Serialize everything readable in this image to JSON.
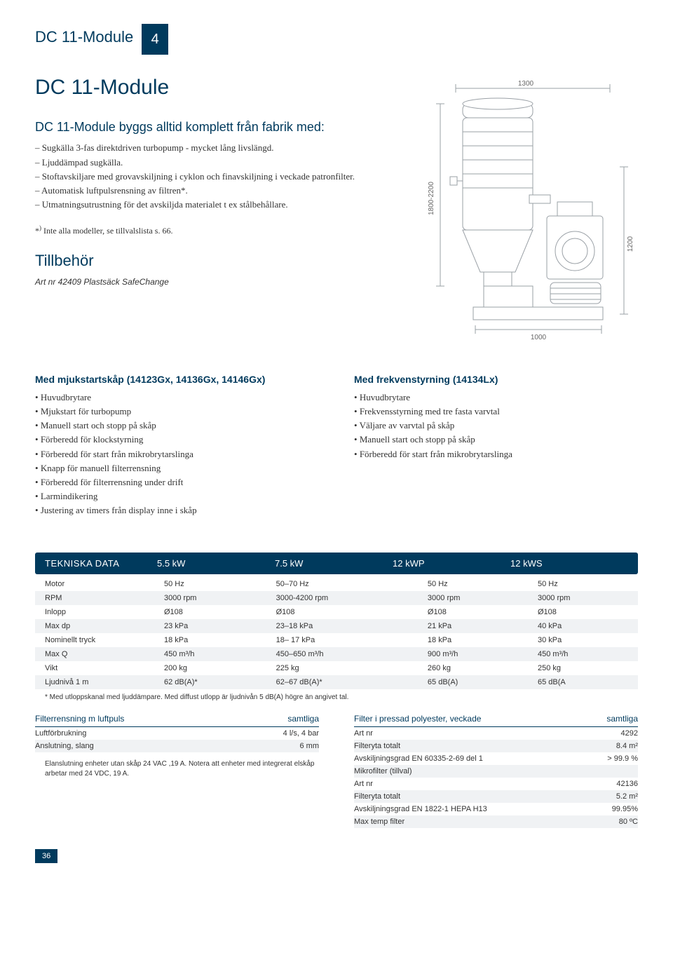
{
  "header": {
    "title": "DC 11-Module",
    "badge": "4"
  },
  "main": {
    "title": "DC 11-Module",
    "subtitle": "DC 11-Module byggs alltid komplett från fabrik med:",
    "intro_items": [
      "Sugkälla 3-fas direktdriven turbopump - mycket lång livslängd.",
      "Ljuddämpad sugkälla.",
      "Stoftavskiljare med grovavskiljning i cyklon och finavskiljning i veckade patronfilter.",
      "Automatisk luftpulsrensning av filtren*.",
      "Utmatningsutrustning för det avskiljda materialet t ex stålbehållare."
    ],
    "footnote_prefix": "*",
    "footnote_sup": ")",
    "footnote": " Inte alla modeller, se tillvalslista s. 66.",
    "tillbehor_title": "Tillbehör",
    "tillbehor_line": "Art nr 42409  Plastsäck SafeChange"
  },
  "diagram": {
    "top_dim": "1300",
    "left_dim": "1800-2200",
    "right_dim": "1200",
    "bottom_dim": "1000",
    "stroke": "#9aa0a6",
    "fill": "#ffffff",
    "text_size": 10
  },
  "columns": {
    "left": {
      "title": "Med mjukstartskåp (14123Gx, 14136Gx, 14146Gx)",
      "items": [
        "Huvudbrytare",
        "Mjukstart för turbopump",
        "Manuell start och stopp på skåp",
        "Förberedd för klockstyrning",
        "Förberedd för start från mikrobrytarslinga",
        "Knapp för manuell filterrensning",
        "Förberedd för filterrensning under drift",
        "Larmindikering",
        "Justering av timers från display inne i skåp"
      ]
    },
    "right": {
      "title": "Med frekvenstyrning (14134Lx)",
      "items": [
        "Huvudbrytare",
        "Frekvensstyrning med tre fasta varvtal",
        "Väljare av varvtal på skåp",
        "Manuell start och stopp på skåp",
        "Förberedd för start från mikrobrytarslinga"
      ]
    }
  },
  "tech": {
    "header_label": "TEKNISKA DATA",
    "cols": [
      "5.5 kW",
      "7.5 kW",
      "12 kWP",
      "12 kWS"
    ],
    "rows": [
      [
        "Motor",
        "50 Hz",
        "50–70 Hz",
        "50 Hz",
        "50 Hz"
      ],
      [
        "RPM",
        "3000 rpm",
        "3000-4200 rpm",
        "3000 rpm",
        "3000 rpm"
      ],
      [
        "Inlopp",
        "Ø108",
        "Ø108",
        "Ø108",
        "Ø108"
      ],
      [
        "Max dp",
        "23 kPa",
        "23–18 kPa",
        "21 kPa",
        "40 kPa"
      ],
      [
        "Nominellt tryck",
        "18 kPa",
        "18– 17 kPa",
        "18 kPa",
        "30 kPa"
      ],
      [
        "Max Q",
        "450 m³/h",
        "450–650 m³/h",
        "900 m³/h",
        "450 m³/h"
      ],
      [
        "Vikt",
        "200 kg",
        "225 kg",
        "260 kg",
        "250 kg"
      ],
      [
        "Ljudnivå 1 m",
        "62 dB(A)*",
        "62–67 dB(A)*",
        "65 dB(A)",
        "65 dB(A"
      ]
    ],
    "note": "* Med utloppskanal med ljuddämpare. Med diffust utlopp är ljudnivån 5 dB(A) högre än angivet tal."
  },
  "bottom": {
    "left": {
      "title": "Filterrensning m luftpuls",
      "title_val": "samtliga",
      "rows": [
        {
          "k": "Luftförbrukning",
          "v": "4 l/s, 4 bar"
        },
        {
          "k": "Anslutning, slang",
          "v": "6 mm"
        }
      ],
      "note": "Elanslutning enheter utan skåp 24 VAC ,19 A.  Notera att enheter med integrerat elskåp arbetar med 24 VDC, 19 A."
    },
    "right": {
      "title": "Filter i pressad polyester, veckade",
      "title_val": "samtliga",
      "rows": [
        {
          "k": "Art nr",
          "v": "4292"
        },
        {
          "k": "Filteryta totalt",
          "v": "8.4 m²"
        },
        {
          "k": "Avskiljningsgrad EN 60335-2-69 del 1",
          "v": "> 99.9 %"
        },
        {
          "k": "Mikrofilter (tillval)",
          "v": ""
        },
        {
          "k": "Art nr",
          "v": "42136"
        },
        {
          "k": "Filteryta totalt",
          "v": "5.2 m²"
        },
        {
          "k": "Avskiljningsgrad EN 1822-1 HEPA H13",
          "v": "99.95%"
        },
        {
          "k": "Max temp filter",
          "v": "80 ºC"
        }
      ]
    }
  },
  "page_number": "36"
}
